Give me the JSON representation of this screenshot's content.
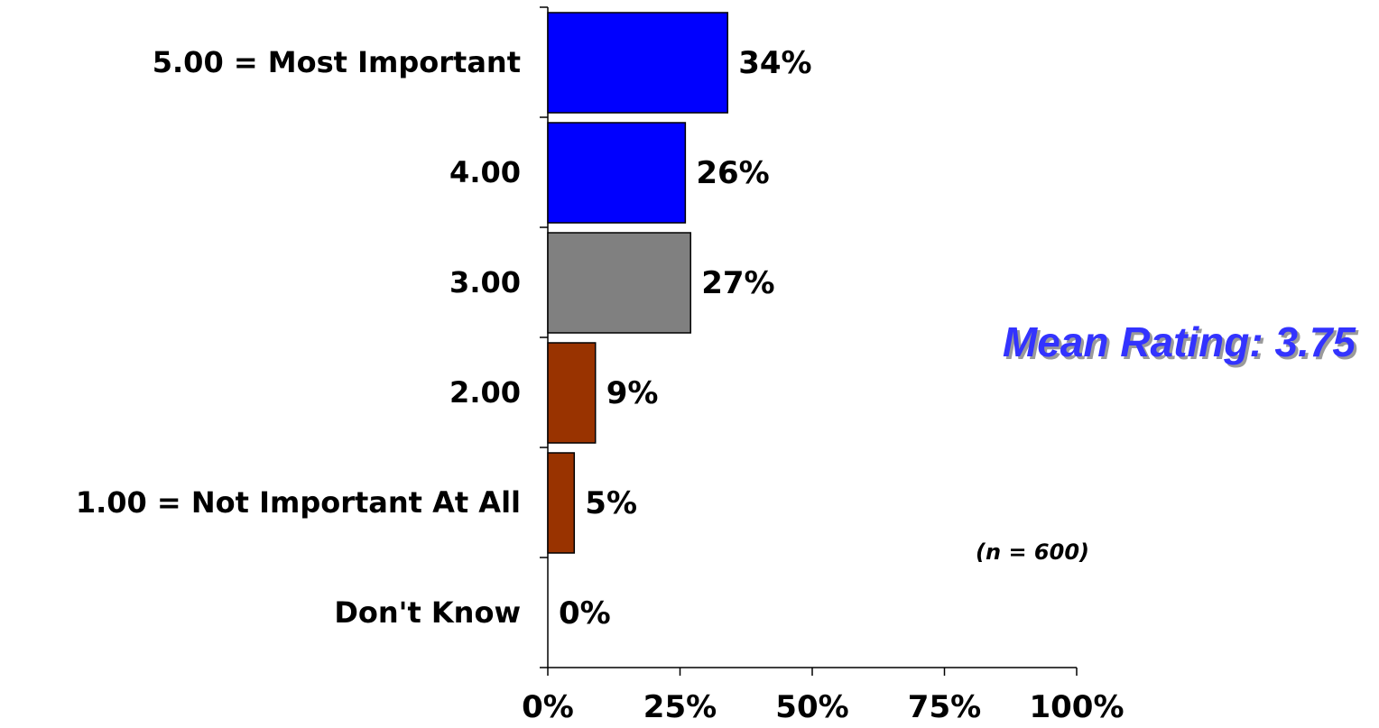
{
  "chart_data": {
    "type": "bar",
    "orientation": "horizontal",
    "categories": [
      "5.00 = Most Important",
      "4.00",
      "3.00",
      "2.00",
      "1.00 = Not Important At All",
      "Don't Know"
    ],
    "values": [
      34,
      26,
      27,
      9,
      5,
      0
    ],
    "value_labels": [
      "34%",
      "26%",
      "27%",
      "9%",
      "5%",
      "0%"
    ],
    "bar_colors": [
      "#0000ff",
      "#0000ff",
      "#808080",
      "#993300",
      "#993300",
      "#993300"
    ],
    "xlim": [
      0,
      100
    ],
    "x_ticks": [
      0,
      25,
      50,
      75,
      100
    ],
    "x_tick_labels": [
      "0%",
      "25%",
      "50%",
      "75%",
      "100%"
    ],
    "title": "",
    "xlabel": "",
    "ylabel": "",
    "grid": false,
    "legend": "none"
  },
  "annotations": {
    "mean_rating": "Mean Rating:  3.75",
    "sample_size": "(n = 600)"
  },
  "colors": {
    "mean_text": "#3333ff",
    "axis": "#000000"
  }
}
